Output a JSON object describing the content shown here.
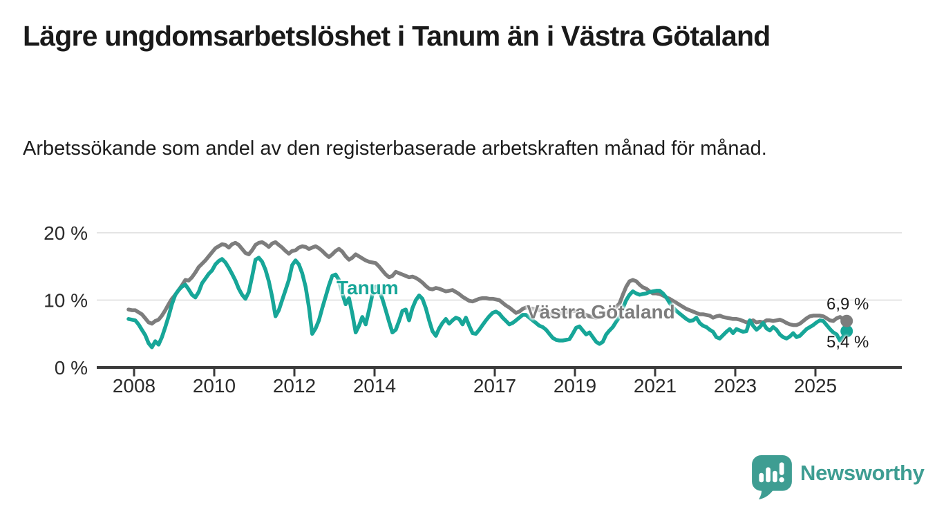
{
  "header": {
    "title": "Lägre ungdomsarbetslöshet i Tanum än i Västra Götaland",
    "subtitle": "Arbetssökande som andel av den registerbaserade arbetskraften månad för månad."
  },
  "chart": {
    "colors": {
      "tanum": "#17A698",
      "vastra_gotaland": "#7D7D7D",
      "axis": "#3A3A3A",
      "gridline": "#E4E4E4",
      "tick_text": "#2B2B2B"
    },
    "y_axis": [
      {
        "label": "20 %",
        "value": 20
      },
      {
        "label": "10 %",
        "value": 10
      },
      {
        "label": "0 %",
        "value": 0
      }
    ],
    "x_axis": [
      {
        "label": "2008",
        "year": 2008
      },
      {
        "label": "2010",
        "year": 2010
      },
      {
        "label": "2012",
        "year": 2012
      },
      {
        "label": "2014",
        "year": 2014
      },
      {
        "label": "2017",
        "year": 2017
      },
      {
        "label": "2019",
        "year": 2019
      },
      {
        "label": "2021",
        "year": 2021
      },
      {
        "label": "2023",
        "year": 2023
      },
      {
        "label": "2025",
        "year": 2025
      }
    ],
    "series_labels": {
      "tanum": "Tanum",
      "vastra_gotaland": "Västra Götaland"
    },
    "end_labels": {
      "vastra_gotaland": "6,9 %",
      "tanum": "5,4 %"
    }
  },
  "chart_data": {
    "type": "line",
    "title": "Lägre ungdomsarbetslöshet i Tanum än i Västra Götaland",
    "subtitle": "Arbetssökande som andel av den registerbaserade arbetskraften månad för månad.",
    "frequency": "monthly",
    "x_start": "2007-11",
    "x_end": "2025-10",
    "y_unit": "%",
    "ylim": [
      0,
      20
    ],
    "grid": true,
    "legend_position": "inline-labels",
    "last_values": {
      "Tanum": 5.4,
      "Västra Götaland": 6.9
    },
    "series": [
      {
        "name": "Tanum",
        "color": "#17A698",
        "values": [
          7.2,
          7.1,
          7.0,
          6.4,
          5.6,
          4.8,
          3.6,
          3.0,
          3.9,
          3.4,
          4.5,
          6.0,
          7.6,
          9.4,
          10.8,
          11.5,
          12.0,
          12.3,
          11.6,
          10.8,
          10.4,
          11.2,
          12.5,
          13.2,
          13.9,
          14.4,
          15.3,
          15.8,
          16.1,
          15.6,
          14.8,
          13.9,
          12.9,
          11.7,
          10.8,
          10.2,
          11.2,
          13.5,
          16.0,
          16.3,
          15.7,
          14.5,
          12.8,
          10.5,
          7.6,
          8.5,
          10.0,
          11.5,
          13.0,
          15.2,
          15.9,
          15.3,
          14.0,
          12.0,
          9.0,
          5.0,
          5.8,
          7.0,
          8.8,
          10.5,
          12.2,
          13.6,
          13.8,
          13.0,
          11.0,
          9.4,
          10.3,
          8.0,
          5.2,
          6.2,
          7.5,
          6.4,
          8.5,
          10.8,
          12.0,
          11.5,
          10.2,
          8.5,
          6.8,
          5.2,
          5.6,
          6.9,
          8.4,
          8.6,
          7.0,
          8.8,
          10.0,
          10.7,
          10.2,
          8.8,
          7.0,
          5.4,
          4.7,
          5.8,
          6.6,
          7.2,
          6.5,
          7.0,
          7.4,
          7.2,
          6.4,
          7.4,
          6.2,
          5.1,
          5.0,
          5.6,
          6.3,
          7.0,
          7.6,
          8.1,
          8.3,
          8.0,
          7.4,
          6.9,
          6.4,
          6.6,
          7.0,
          7.4,
          7.8,
          7.8,
          7.4,
          7.0,
          6.6,
          6.2,
          6.0,
          5.6,
          5.0,
          4.4,
          4.1,
          4.0,
          4.0,
          4.1,
          4.2,
          5.0,
          5.9,
          6.1,
          5.5,
          4.9,
          5.2,
          4.5,
          3.8,
          3.5,
          3.8,
          4.9,
          5.5,
          6.0,
          6.8,
          7.5,
          8.8,
          10.0,
          10.8,
          11.3,
          11.0,
          10.8,
          10.9,
          11.0,
          11.2,
          11.3,
          11.4,
          11.4,
          11.0,
          10.4,
          9.6,
          8.9,
          8.4,
          8.0,
          7.6,
          7.2,
          6.9,
          7.0,
          7.4,
          6.6,
          6.2,
          6.0,
          5.6,
          5.3,
          4.5,
          4.3,
          4.8,
          5.3,
          5.7,
          5.1,
          5.7,
          5.5,
          5.3,
          5.4,
          7.0,
          6.2,
          5.6,
          6.0,
          6.6,
          5.8,
          5.5,
          6.0,
          5.6,
          4.9,
          4.5,
          4.3,
          4.6,
          5.1,
          4.5,
          4.7,
          5.2,
          5.7,
          6.0,
          6.3,
          6.7,
          7.0,
          6.9,
          6.3,
          5.7,
          5.2,
          4.9,
          4.0,
          4.6,
          5.4
        ]
      },
      {
        "name": "Västra Götaland",
        "color": "#7D7D7D",
        "values": [
          8.6,
          8.5,
          8.5,
          8.2,
          7.9,
          7.3,
          6.7,
          6.5,
          6.9,
          7.1,
          7.7,
          8.5,
          9.4,
          10.2,
          10.8,
          11.5,
          12.2,
          13.0,
          12.9,
          13.4,
          14.1,
          14.9,
          15.4,
          15.9,
          16.5,
          17.1,
          17.7,
          18.0,
          18.3,
          18.2,
          17.8,
          18.3,
          18.5,
          18.2,
          17.6,
          17.0,
          16.8,
          17.4,
          18.2,
          18.5,
          18.6,
          18.3,
          17.9,
          18.4,
          18.6,
          18.2,
          17.8,
          17.3,
          16.9,
          17.3,
          17.4,
          17.8,
          18.0,
          17.9,
          17.6,
          17.8,
          18.0,
          17.7,
          17.3,
          16.8,
          16.4,
          16.8,
          17.3,
          17.6,
          17.2,
          16.5,
          16.0,
          16.3,
          16.8,
          16.5,
          16.2,
          15.9,
          15.7,
          15.6,
          15.5,
          15.0,
          14.4,
          13.8,
          13.4,
          13.6,
          14.2,
          14.0,
          13.8,
          13.6,
          13.4,
          13.5,
          13.3,
          13.0,
          12.6,
          12.1,
          11.7,
          11.6,
          11.8,
          11.7,
          11.5,
          11.3,
          11.4,
          11.5,
          11.2,
          10.9,
          10.5,
          10.2,
          9.9,
          9.8,
          10.0,
          10.2,
          10.3,
          10.3,
          10.2,
          10.2,
          10.1,
          10.0,
          9.6,
          9.2,
          8.9,
          8.5,
          8.1,
          8.3,
          8.7,
          8.9,
          8.8,
          8.7,
          8.6,
          8.5,
          8.3,
          8.1,
          7.9,
          7.8,
          7.9,
          8.0,
          8.1,
          8.2,
          8.3,
          8.4,
          8.4,
          8.2,
          8.0,
          7.8,
          7.6,
          7.5,
          7.4,
          7.5,
          7.7,
          8.0,
          8.3,
          8.6,
          9.0,
          9.5,
          10.8,
          12.0,
          12.8,
          13.0,
          12.8,
          12.3,
          11.9,
          11.7,
          11.3,
          11.0,
          11.0,
          10.9,
          10.7,
          10.4,
          10.2,
          9.9,
          9.6,
          9.3,
          9.0,
          8.7,
          8.5,
          8.3,
          8.1,
          7.9,
          7.9,
          7.8,
          7.7,
          7.4,
          7.6,
          7.7,
          7.5,
          7.4,
          7.3,
          7.2,
          7.2,
          7.1,
          6.9,
          6.7,
          6.8,
          7.0,
          6.7,
          6.8,
          6.7,
          7.0,
          7.0,
          6.9,
          7.0,
          7.1,
          6.9,
          6.6,
          6.4,
          6.3,
          6.3,
          6.5,
          6.9,
          7.3,
          7.6,
          7.7,
          7.7,
          7.7,
          7.6,
          7.3,
          7.0,
          6.9,
          7.3,
          7.5,
          7.2,
          6.9
        ]
      }
    ]
  },
  "footer": {
    "brand": "Newsworthy",
    "brand_color": "#3E9D92"
  }
}
